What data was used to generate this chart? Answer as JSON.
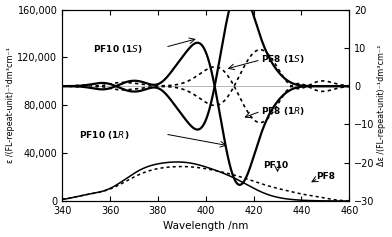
{
  "xlim": [
    340,
    460
  ],
  "ylim_left": [
    0,
    160000
  ],
  "ylim_right": [
    -30,
    20
  ],
  "yticks_left": [
    0,
    40000,
    80000,
    120000,
    160000
  ],
  "yticks_right": [
    -30,
    -20,
    -10,
    0,
    10,
    20
  ],
  "xticks": [
    340,
    360,
    380,
    400,
    420,
    440,
    460
  ],
  "xlabel": "Wavelength /nm",
  "ylabel_left": "ε /(FL-repeat-unit)⁻¹dm³cm⁻¹",
  "ylabel_right": "Δε /(FL-repeat-unit)⁻¹dm³cm⁻¹",
  "bg_color": "#f0f0f0"
}
